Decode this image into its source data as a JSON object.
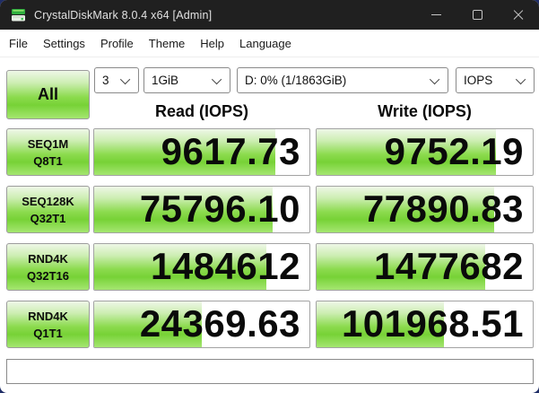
{
  "window": {
    "title": "CrystalDiskMark 8.0.4 x64 [Admin]"
  },
  "menu": {
    "items": [
      "File",
      "Settings",
      "Profile",
      "Theme",
      "Help",
      "Language"
    ]
  },
  "toolbar": {
    "all_button_label": "All",
    "test_count": "3",
    "test_size": "1GiB",
    "target_drive": "D: 0% (1/1863GiB)",
    "unit": "IOPS"
  },
  "results": {
    "read_header": "Read (IOPS)",
    "write_header": "Write (IOPS)",
    "rows": [
      {
        "label_line1": "SEQ1M",
        "label_line2": "Q8T1",
        "read": "9617.73",
        "write": "9752.19",
        "read_fill_pct": 84,
        "write_fill_pct": 83
      },
      {
        "label_line1": "SEQ128K",
        "label_line2": "Q32T1",
        "read": "75796.10",
        "write": "77890.83",
        "read_fill_pct": 83,
        "write_fill_pct": 82
      },
      {
        "label_line1": "RND4K",
        "label_line2": "Q32T16",
        "read": "1484612",
        "write": "1477682",
        "read_fill_pct": 80,
        "write_fill_pct": 78
      },
      {
        "label_line1": "RND4K",
        "label_line2": "Q1T1",
        "read": "24369.63",
        "write": "101968.51",
        "read_fill_pct": 50,
        "write_fill_pct": 59
      }
    ]
  },
  "status_bar": {
    "text": ""
  },
  "colors": {
    "accent_green": "#7bd437",
    "titlebar_bg": "#202020",
    "desktop_bg": "#1f2d66"
  }
}
